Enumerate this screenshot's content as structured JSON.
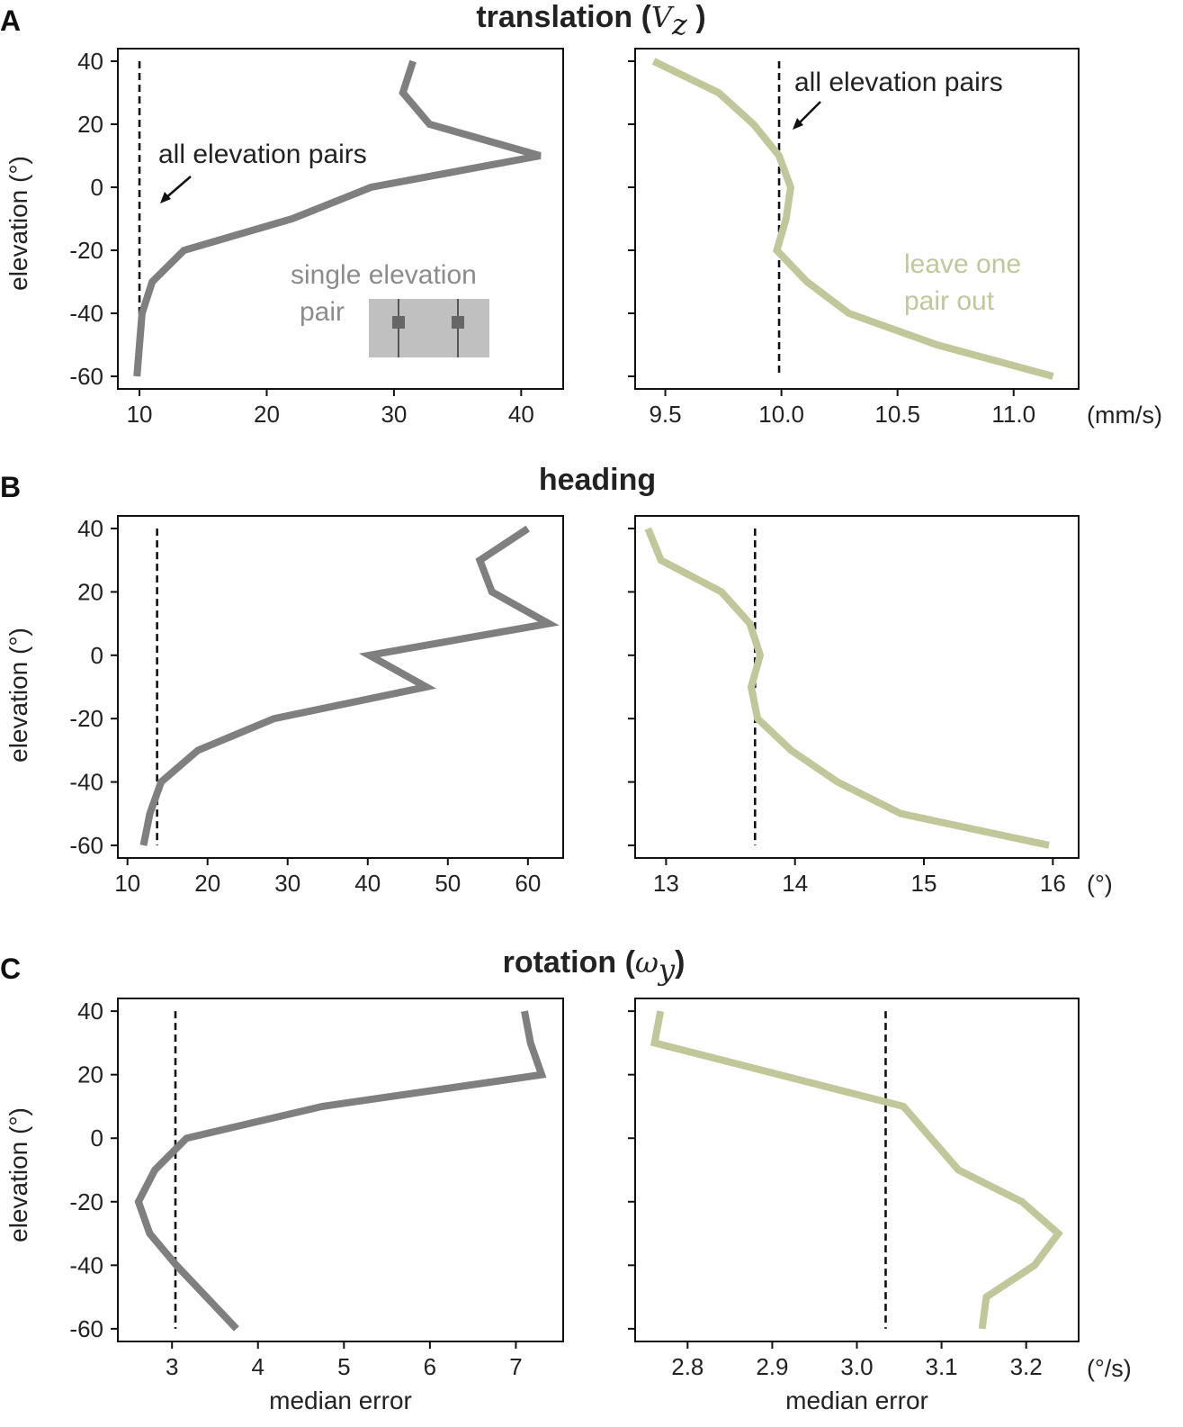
{
  "panels": [
    {
      "letter": "A",
      "title": "translation (",
      "symbol": "V",
      "symbol_sub": "z",
      "title_end": " )"
    },
    {
      "letter": "B",
      "title": "heading",
      "symbol": "",
      "symbol_sub": "",
      "title_end": ""
    },
    {
      "letter": "C",
      "title": "rotation (",
      "symbol": "ω",
      "symbol_sub": "y",
      "title_end": ")"
    }
  ],
  "annotations": {
    "all_pairs_left": "all elevation pairs",
    "all_pairs_right": "all elevation pairs",
    "single_line1": "single elevation",
    "single_line2": "pair",
    "loo_line1": "leave one",
    "loo_line2": "pair out"
  },
  "colors": {
    "single": "#7f7f7f",
    "leave_one_out": "#c2c79a",
    "reference": "#111111",
    "inset_box": "#c0c0c0",
    "inset_marker": "#666666"
  },
  "chart_data": [
    {
      "type": "line",
      "panel": "A",
      "series_kind": "single",
      "xlabel": "",
      "ylabel": "elevation (°)",
      "unit": "",
      "xlim": [
        8.3,
        43.3
      ],
      "ylim": [
        -64,
        44
      ],
      "xticks": [
        10,
        20,
        30,
        40
      ],
      "xtick_labels": [
        "10",
        "20",
        "30",
        "40"
      ],
      "yticks": [
        40,
        20,
        0,
        -20,
        -40,
        -60
      ],
      "ytick_labels": [
        "40",
        "20",
        "0",
        "-20",
        "-40",
        "-60"
      ],
      "reference": 10.0,
      "series": [
        {
          "x": [
            31.5,
            30.7,
            32.8,
            41.5,
            28.2,
            22.0,
            13.5,
            11.0,
            10.2,
            9.8
          ],
          "y": [
            40,
            30,
            20,
            10,
            0,
            -10,
            -20,
            -30,
            -40,
            -60
          ]
        }
      ]
    },
    {
      "type": "line",
      "panel": "A",
      "series_kind": "loo",
      "xlabel": "",
      "ylabel": "",
      "unit": "(mm/s)",
      "xlim": [
        9.37,
        11.28
      ],
      "ylim": [
        -64,
        44
      ],
      "xticks": [
        9.5,
        10.0,
        10.5,
        11.0
      ],
      "xtick_labels": [
        "9.5",
        "10.0",
        "10.5",
        "11.0"
      ],
      "yticks": [
        40,
        20,
        0,
        -20,
        -40,
        -60
      ],
      "ytick_labels": [],
      "reference": 9.99,
      "series": [
        {
          "x": [
            9.45,
            9.73,
            9.88,
            9.99,
            10.04,
            10.02,
            9.98,
            10.11,
            10.29,
            10.67,
            11.17
          ],
          "y": [
            40,
            30,
            20,
            10,
            0,
            -10,
            -20,
            -30,
            -40,
            -50,
            -60
          ]
        }
      ]
    },
    {
      "type": "line",
      "panel": "B",
      "series_kind": "single",
      "xlabel": "",
      "ylabel": "elevation (°)",
      "unit": "",
      "xlim": [
        8.8,
        64.4
      ],
      "ylim": [
        -64,
        44
      ],
      "xticks": [
        10,
        20,
        30,
        40,
        50,
        60
      ],
      "xtick_labels": [
        "10",
        "20",
        "30",
        "40",
        "50",
        "60"
      ],
      "yticks": [
        40,
        20,
        0,
        -20,
        -40,
        -60
      ],
      "ytick_labels": [
        "40",
        "20",
        "0",
        "-20",
        "-40",
        "-60"
      ],
      "reference": 13.7,
      "series": [
        {
          "x": [
            60.0,
            54.0,
            55.5,
            62.6,
            40.2,
            47.3,
            28.3,
            18.8,
            14.2,
            12.8,
            12.0
          ],
          "y": [
            40,
            30,
            20,
            10,
            0,
            -10,
            -20,
            -30,
            -40,
            -50,
            -60
          ]
        }
      ]
    },
    {
      "type": "line",
      "panel": "B",
      "series_kind": "loo",
      "xlabel": "",
      "ylabel": "",
      "unit": "(°)",
      "xlim": [
        12.76,
        16.2
      ],
      "ylim": [
        -64,
        44
      ],
      "xticks": [
        13,
        14,
        15,
        16
      ],
      "xtick_labels": [
        "13",
        "14",
        "15",
        "16"
      ],
      "yticks": [
        40,
        20,
        0,
        -20,
        -40,
        -60
      ],
      "ytick_labels": [],
      "reference": 13.69,
      "series": [
        {
          "x": [
            12.86,
            12.96,
            13.43,
            13.65,
            13.73,
            13.66,
            13.71,
            13.97,
            14.33,
            14.82,
            15.97
          ],
          "y": [
            40,
            30,
            20,
            10,
            0,
            -10,
            -20,
            -30,
            -40,
            -50,
            -60
          ]
        }
      ]
    },
    {
      "type": "line",
      "panel": "C",
      "series_kind": "single",
      "xlabel": "median error",
      "ylabel": "elevation (°)",
      "unit": "",
      "xlim": [
        2.37,
        7.55
      ],
      "ylim": [
        -64,
        44
      ],
      "xticks": [
        3,
        4,
        5,
        6,
        7
      ],
      "xtick_labels": [
        "3",
        "4",
        "5",
        "6",
        "7"
      ],
      "yticks": [
        40,
        20,
        0,
        -20,
        -40,
        -60
      ],
      "ytick_labels": [
        "40",
        "20",
        "0",
        "-20",
        "-40",
        "-60"
      ],
      "reference": 3.04,
      "series": [
        {
          "x": [
            7.1,
            7.17,
            7.3,
            4.75,
            3.17,
            2.8,
            2.61,
            2.74,
            3.05,
            3.75
          ],
          "y": [
            40,
            30,
            20,
            10,
            0,
            -10,
            -20,
            -30,
            -40,
            -60
          ]
        }
      ]
    },
    {
      "type": "line",
      "panel": "C",
      "series_kind": "loo",
      "xlabel": "median error",
      "ylabel": "",
      "unit": "(°/s)",
      "xlim": [
        2.738,
        3.262
      ],
      "ylim": [
        -64,
        44
      ],
      "xticks": [
        2.8,
        2.9,
        3.0,
        3.1,
        3.2
      ],
      "xtick_labels": [
        "2.8",
        "2.9",
        "3.0",
        "3.1",
        "3.2"
      ],
      "yticks": [
        40,
        20,
        0,
        -20,
        -40,
        -60
      ],
      "ytick_labels": [],
      "reference": 3.034,
      "series": [
        {
          "x": [
            2.768,
            2.761,
            3.055,
            3.12,
            3.195,
            3.238,
            3.21,
            3.153,
            3.148
          ],
          "y": [
            40,
            30,
            10,
            -10,
            -20,
            -30,
            -40,
            -50,
            -60
          ]
        }
      ]
    }
  ]
}
